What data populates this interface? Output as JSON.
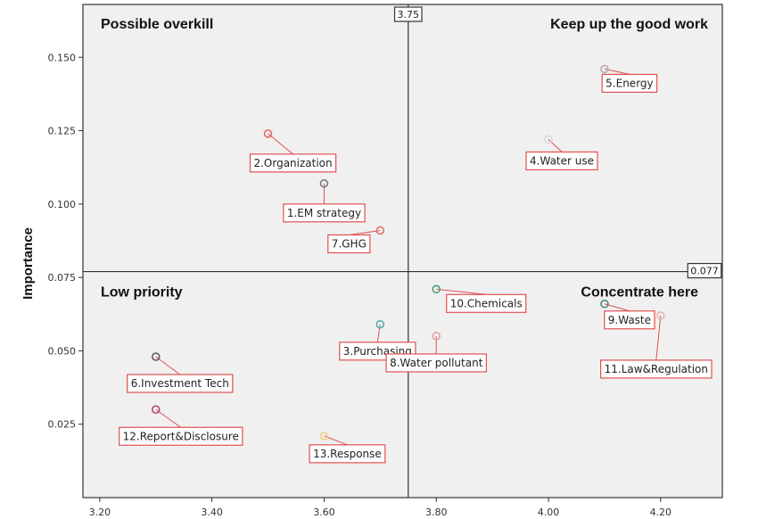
{
  "chart_data": {
    "type": "scatter",
    "title": "",
    "xlabel": "",
    "ylabel": "Importance",
    "xlim": [
      3.17,
      4.31
    ],
    "ylim": [
      0.0,
      0.168
    ],
    "xticks": [
      3.2,
      3.4,
      3.6,
      3.8,
      4.0,
      4.2
    ],
    "xtick_labels": [
      "3.20",
      "3.40",
      "3.60",
      "3.80",
      "4.00",
      "4.20"
    ],
    "yticks": [
      0.025,
      0.05,
      0.075,
      0.1,
      0.125,
      0.15
    ],
    "ytick_labels": [
      "0.025",
      "0.050",
      "0.075",
      "0.100",
      "0.125",
      "0.150"
    ],
    "grid": false,
    "plot_background": "#f0f0f0",
    "reference_lines": {
      "x": {
        "value": 3.75,
        "label": "3.75"
      },
      "y": {
        "value": 0.077,
        "label": "0.077"
      }
    },
    "quadrant_labels": [
      {
        "text": "Possible overkill",
        "position": "top-left"
      },
      {
        "text": "Keep up the good work",
        "position": "top-right"
      },
      {
        "text": "Low priority",
        "position": "bottom-left"
      },
      {
        "text": "Concentrate here",
        "position": "bottom-right"
      }
    ],
    "points": [
      {
        "label": "1.EM strategy",
        "x": 3.6,
        "y": 0.107,
        "color": "#7a7a7a"
      },
      {
        "label": "2.Organization",
        "x": 3.5,
        "y": 0.124,
        "color": "#e06a6a"
      },
      {
        "label": "3.Purchasing",
        "x": 3.7,
        "y": 0.059,
        "color": "#4fb0a8"
      },
      {
        "label": "4.Water use",
        "x": 4.0,
        "y": 0.122,
        "color": "#d8d8d8"
      },
      {
        "label": "5.Energy",
        "x": 4.1,
        "y": 0.146,
        "color": "#b0b0b0"
      },
      {
        "label": "6.Investment Tech",
        "x": 3.3,
        "y": 0.048,
        "color": "#5a5a5a"
      },
      {
        "label": "7.GHG",
        "x": 3.7,
        "y": 0.091,
        "color": "#e07070"
      },
      {
        "label": "8.Water pollutant",
        "x": 3.8,
        "y": 0.055,
        "color": "#e8a0a0"
      },
      {
        "label": "9.Waste",
        "x": 4.1,
        "y": 0.066,
        "color": "#4a8a7a"
      },
      {
        "label": "10.Chemicals",
        "x": 3.8,
        "y": 0.071,
        "color": "#4aa078"
      },
      {
        "label": "11.Law&Regulation",
        "x": 4.2,
        "y": 0.062,
        "color": "#e8b8b8"
      },
      {
        "label": "12.Report&Disclosure",
        "x": 3.3,
        "y": 0.03,
        "color": "#b04a6a"
      },
      {
        "label": "13.Response",
        "x": 3.6,
        "y": 0.021,
        "color": "#f0d080"
      }
    ],
    "label_box_color": "#e05050",
    "leader_color": "#e05050"
  }
}
